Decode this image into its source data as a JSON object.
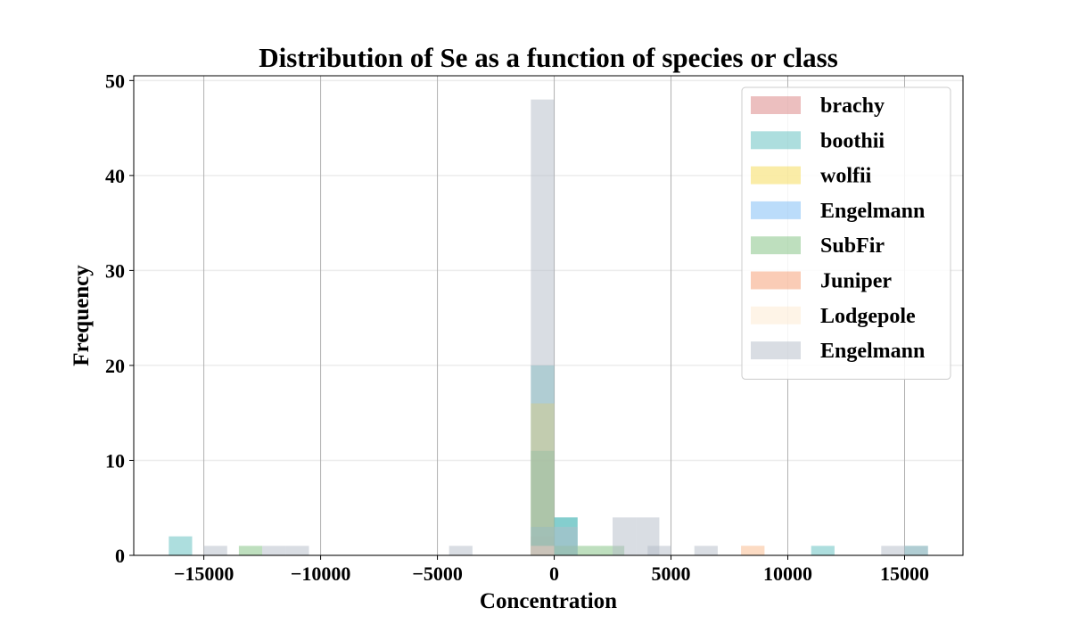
{
  "chart_data": {
    "type": "histogram",
    "title": "Distribution of Se as a function of species or class",
    "xlabel": "Concentration",
    "ylabel": "Frequency",
    "xlim": [
      -18000,
      17500
    ],
    "ylim": [
      0,
      50.5
    ],
    "x_ticks": [
      -15000,
      -10000,
      -5000,
      0,
      5000,
      10000,
      15000
    ],
    "x_tick_labels": [
      "−15000",
      "−10000",
      "−5000",
      "0",
      "5000",
      "10000",
      "15000"
    ],
    "y_ticks": [
      0,
      10,
      20,
      30,
      40,
      50
    ],
    "y_tick_labels": [
      "0",
      "10",
      "20",
      "30",
      "40",
      "50"
    ],
    "bin_width": 1000,
    "grid": {
      "x": true,
      "y": true
    },
    "legend_position": "upper right",
    "series": [
      {
        "name": "brachy",
        "color": "#d98080",
        "bins": [
          [
            -1000,
            0,
            2
          ]
        ]
      },
      {
        "name": "boothii",
        "color": "#5bbdbd",
        "bins": [
          [
            -16500,
            -15500,
            2
          ],
          [
            -1000,
            0,
            20
          ],
          [
            0,
            1000,
            4
          ],
          [
            0,
            1000,
            4
          ],
          [
            11000,
            12000,
            1
          ],
          [
            15000,
            16000,
            1
          ]
        ]
      },
      {
        "name": "wolfii",
        "color": "#f5d94f",
        "bins": [
          [
            -1000,
            0,
            16
          ]
        ]
      },
      {
        "name": "Engelmann",
        "color": "#78b9f5",
        "bins": [
          [
            -1000,
            0,
            3
          ]
        ]
      },
      {
        "name": "SubFir",
        "color": "#7ec07e",
        "bins": [
          [
            -13500,
            -12500,
            1
          ],
          [
            -1000,
            0,
            11
          ],
          [
            0,
            1000,
            1
          ],
          [
            1000,
            2000,
            1
          ],
          [
            2000,
            3000,
            1
          ]
        ]
      },
      {
        "name": "Juniper",
        "color": "#f59a6e",
        "bins": [
          [
            -1000,
            0,
            1
          ],
          [
            8000,
            9000,
            1
          ]
        ]
      },
      {
        "name": "Lodgepole",
        "color": "#fde9cf",
        "bins": [
          [
            -1000,
            0,
            1
          ],
          [
            8000,
            9000,
            1
          ]
        ]
      },
      {
        "name": "Engelmann",
        "color": "#b4bcc8",
        "bins": [
          [
            -15000,
            -14000,
            1
          ],
          [
            -12500,
            -11500,
            1
          ],
          [
            -11500,
            -10500,
            1
          ],
          [
            -4500,
            -3500,
            1
          ],
          [
            -1000,
            0,
            48
          ],
          [
            0,
            1000,
            3
          ],
          [
            2500,
            3500,
            4
          ],
          [
            3500,
            4500,
            4
          ],
          [
            4000,
            5000,
            1
          ],
          [
            6000,
            7000,
            1
          ],
          [
            14000,
            15000,
            1
          ],
          [
            15000,
            16000,
            1
          ]
        ]
      }
    ]
  }
}
